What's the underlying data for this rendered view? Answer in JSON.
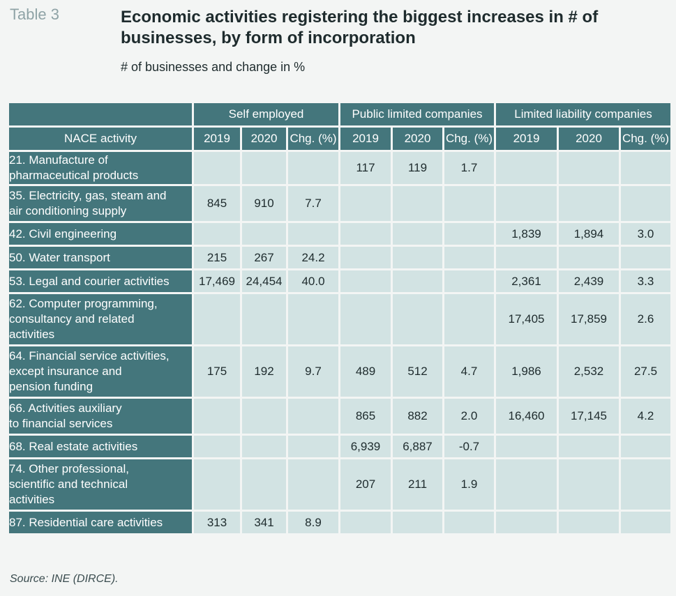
{
  "header": {
    "table_label": "Table 3",
    "title": "Economic activities registering the biggest increases in # of businesses, by form of incorporation",
    "subtitle": "# of businesses and change in %"
  },
  "table": {
    "groups": [
      "Self employed",
      "Public limited companies",
      "Limited liability companies"
    ],
    "row_header": "NACE activity",
    "sub_columns": [
      "2019",
      "2020",
      "Chg. (%)",
      "2019",
      "2020",
      "Chg. (%)",
      "2019",
      "2020",
      "Chg. (%)"
    ],
    "rows": [
      {
        "activity": "21. Manufacture of\n   pharmaceutical products",
        "values": [
          "",
          "",
          "",
          "117",
          "119",
          "1.7",
          "",
          "",
          ""
        ]
      },
      {
        "activity": "35. Electricity, gas, steam and\n     air conditioning supply",
        "values": [
          "845",
          "910",
          "7.7",
          "",
          "",
          "",
          "",
          "",
          ""
        ]
      },
      {
        "activity": "42. Civil engineering",
        "values": [
          "",
          "",
          "",
          "",
          "",
          "",
          "1,839",
          "1,894",
          "3.0"
        ]
      },
      {
        "activity": "50. Water transport",
        "values": [
          "215",
          "267",
          "24.2",
          "",
          "",
          "",
          "",
          "",
          ""
        ]
      },
      {
        "activity": "53. Legal and courier activities",
        "values": [
          "17,469",
          "24,454",
          "40.0",
          "",
          "",
          "",
          "2,361",
          "2,439",
          "3.3"
        ]
      },
      {
        "activity": "62. Computer programming,\n     consultancy and related\n     activities",
        "values": [
          "",
          "",
          "",
          "",
          "",
          "",
          "17,405",
          "17,859",
          "2.6"
        ]
      },
      {
        "activity": "64. Financial service activities,\n     except insurance and\n     pension funding",
        "values": [
          "175",
          "192",
          "9.7",
          "489",
          "512",
          "4.7",
          "1,986",
          "2,532",
          "27.5"
        ]
      },
      {
        "activity": "66. Activities auxiliary\n     to financial services",
        "values": [
          "",
          "",
          "",
          "865",
          "882",
          "2.0",
          "16,460",
          "17,145",
          "4.2"
        ]
      },
      {
        "activity": "68. Real estate activities",
        "values": [
          "",
          "",
          "",
          "6,939",
          "6,887",
          "-0.7",
          "",
          "",
          ""
        ]
      },
      {
        "activity": "74. Other professional,\n     scientific and technical\n     activities",
        "values": [
          "",
          "",
          "",
          "207",
          "211",
          "1.9",
          "",
          "",
          ""
        ]
      },
      {
        "activity": "87. Residential care activities",
        "values": [
          "313",
          "341",
          "8.9",
          "",
          "",
          "",
          "",
          "",
          ""
        ]
      }
    ]
  },
  "footer": {
    "source": "Source: INE (DIRCE)."
  },
  "colors": {
    "header_fill": "#44767c",
    "cell_fill": "#d2e3e3",
    "background": "#f3f5f4",
    "label_gray": "#8fa3a6"
  }
}
